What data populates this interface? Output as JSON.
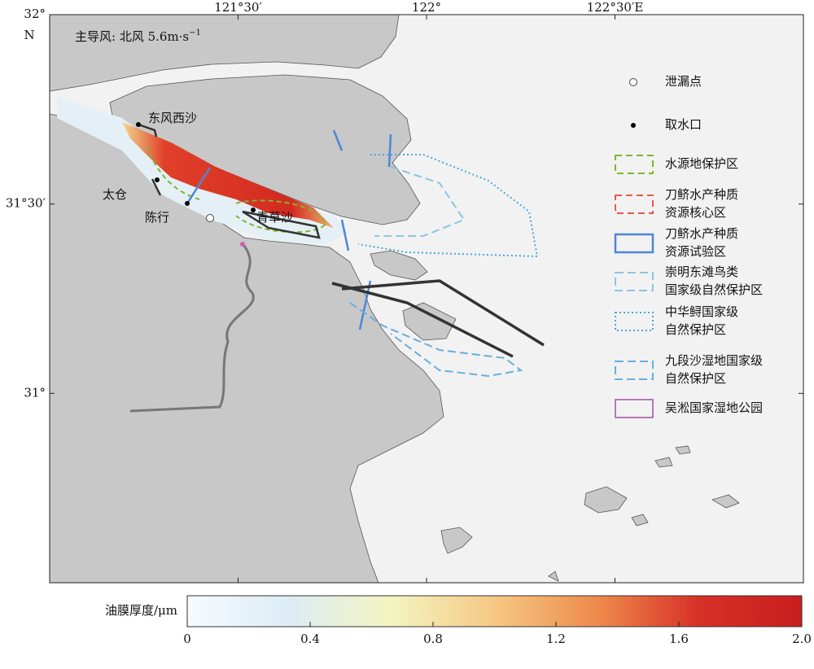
{
  "map": {
    "north": "N",
    "wind_note": "主导风: 北风 5.6m·s",
    "wind_note_exponent": "−1",
    "lonlim": [
      121,
      123
    ],
    "latlim": [
      30.5,
      32
    ],
    "lon_ticks": [
      {
        "value": 121.5,
        "label": "121°30′"
      },
      {
        "value": 122,
        "label": "122°"
      },
      {
        "value": 122.5,
        "label": "122°30′E"
      }
    ],
    "lat_ticks": [
      {
        "value": 32,
        "label": "32°"
      },
      {
        "value": 31.5,
        "label": "31°30′"
      },
      {
        "value": 31,
        "label": "31°"
      }
    ],
    "places": [
      "东风西沙",
      "太仓",
      "陈行",
      "青草沙"
    ],
    "legend": [
      {
        "lines": [
          "泄漏点"
        ]
      },
      {
        "lines": [
          "取水口"
        ]
      },
      {
        "lines": [
          "水源地保护区"
        ]
      },
      {
        "lines": [
          "刀鲚水产种质",
          "资源核心区"
        ]
      },
      {
        "lines": [
          "刀鲚水产种质",
          "资源试验区"
        ]
      },
      {
        "lines": [
          "崇明东滩鸟类",
          "国家级自然保护区"
        ]
      },
      {
        "lines": [
          "中华鲟国家级",
          "自然保护区"
        ]
      },
      {
        "lines": [
          "九段沙湿地国家级",
          "自然保护区"
        ]
      },
      {
        "lines": [
          "吴淞国家湿地公园"
        ]
      }
    ],
    "colorbar": {
      "label": "油膜厚度/μm",
      "lim": [
        0,
        2
      ],
      "ticks": [
        0,
        0.4,
        0.8,
        1.2,
        1.6,
        {
          "value": 2,
          "label": "2.0"
        }
      ],
      "colors": [
        "#f7fbff",
        "#dcecf5",
        "#f4f4c0",
        "#f6c884",
        "#ee8b4c",
        "#d73027",
        "#c81e1e"
      ]
    }
  }
}
